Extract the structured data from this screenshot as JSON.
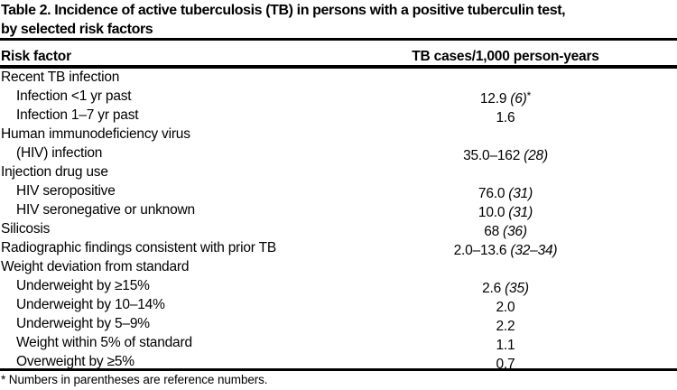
{
  "colors": {
    "ink": "#000000",
    "paper": "#ffffff"
  },
  "title": {
    "line1": "Table 2. Incidence of active tuberculosis (TB) in persons with a positive tuberculin test,",
    "line2": "by selected risk factors"
  },
  "table": {
    "columns": [
      "Risk factor",
      "TB cases/1,000 person-years"
    ],
    "rows": [
      {
        "label": "Recent TB infection",
        "indent": false,
        "value": "",
        "ref": "",
        "note": ""
      },
      {
        "label": "Infection <1 yr past",
        "indent": true,
        "value": "12.9",
        "ref": "(6)",
        "note": "*"
      },
      {
        "label": "Infection 1–7 yr past",
        "indent": true,
        "value": "1.6",
        "ref": "",
        "note": ""
      },
      {
        "label": "Human immunodeficiency virus",
        "indent": false,
        "value": "",
        "ref": "",
        "note": ""
      },
      {
        "label": "(HIV) infection",
        "indent": true,
        "value": "35.0–162",
        "ref": "(28)",
        "note": ""
      },
      {
        "label": "Injection drug use",
        "indent": false,
        "value": "",
        "ref": "",
        "note": ""
      },
      {
        "label": "HIV seropositive",
        "indent": true,
        "value": "76.0",
        "ref": "(31)",
        "note": ""
      },
      {
        "label": "HIV seronegative or unknown",
        "indent": true,
        "value": "10.0",
        "ref": "(31)",
        "note": ""
      },
      {
        "label": "Silicosis",
        "indent": false,
        "value": "68",
        "ref": "(36)",
        "note": ""
      },
      {
        "label": "Radiographic findings consistent with prior TB",
        "indent": false,
        "value": "2.0–13.6",
        "ref": "(32–34)",
        "note": ""
      },
      {
        "label": "Weight deviation from standard",
        "indent": false,
        "value": "",
        "ref": "",
        "note": ""
      },
      {
        "label": "Underweight by ≥15%",
        "indent": true,
        "value": "2.6",
        "ref": "(35)",
        "note": ""
      },
      {
        "label": "Underweight by 10–14%",
        "indent": true,
        "value": "2.0",
        "ref": "",
        "note": ""
      },
      {
        "label": "Underweight by 5–9%",
        "indent": true,
        "value": "2.2",
        "ref": "",
        "note": ""
      },
      {
        "label": "Weight within 5% of standard",
        "indent": true,
        "value": "1.1",
        "ref": "",
        "note": ""
      },
      {
        "label": "Overweight by ≥5%",
        "indent": true,
        "value": "0.7",
        "ref": "",
        "note": ""
      }
    ]
  },
  "footnote": {
    "text": "* Numbers in parentheses are reference numbers."
  }
}
